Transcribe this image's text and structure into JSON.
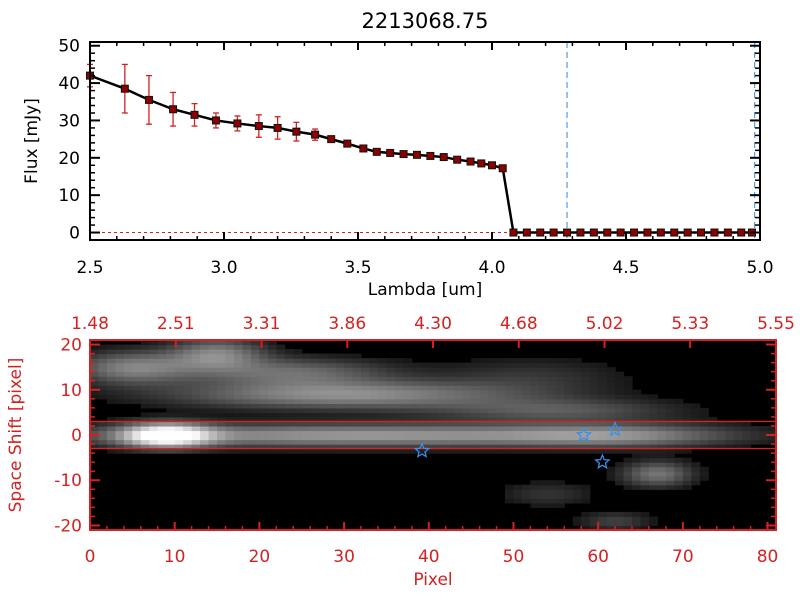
{
  "colors": {
    "axis_top": "#000000",
    "axis_bottom": "#d32222",
    "error_bar": "#d32222",
    "dashed_line": "#4f9fe0",
    "star": "#3d8ee8",
    "image_background": "#000000"
  },
  "chart_data": [
    {
      "type": "line",
      "title": "2213068.75",
      "xlabel": "Lambda [um]",
      "ylabel": "Flux [mJy]",
      "xlim": [
        2.5,
        5.0
      ],
      "ylim": [
        -2,
        51
      ],
      "x_ticks": [
        "2.5",
        "3.0",
        "3.5",
        "4.0",
        "4.5",
        "5.0"
      ],
      "y_ticks": [
        "0",
        "10",
        "20",
        "30",
        "40",
        "50"
      ],
      "series": [
        {
          "x": [
            2.5,
            2.63,
            2.72,
            2.81,
            2.89,
            2.97,
            3.05,
            3.13,
            3.2,
            3.27,
            3.34,
            3.4,
            3.46,
            3.52,
            3.57,
            3.62,
            3.67,
            3.72,
            3.77,
            3.82,
            3.87,
            3.92,
            3.96,
            4.0,
            4.04,
            4.08,
            4.13,
            4.18,
            4.23,
            4.28,
            4.33,
            4.38,
            4.43,
            4.48,
            4.53,
            4.58,
            4.63,
            4.68,
            4.73,
            4.78,
            4.83,
            4.88,
            4.93,
            4.97
          ],
          "y": [
            42,
            38.5,
            35.5,
            33,
            31.5,
            30,
            29.2,
            28.5,
            28,
            27,
            26.2,
            25,
            23.8,
            22.5,
            21.6,
            21.3,
            21,
            20.8,
            20.5,
            20.2,
            19.5,
            19,
            18.5,
            18,
            17.2,
            0,
            0,
            0,
            0,
            0,
            0,
            0,
            0,
            0,
            0,
            0,
            0,
            0,
            0,
            0,
            0,
            0,
            0,
            0
          ],
          "yerr": [
            3,
            6.5,
            6.5,
            4.5,
            3,
            2,
            2,
            3,
            3,
            2.5,
            1.5,
            0.8,
            0.5,
            0.3,
            0.3,
            0.3,
            0.3,
            0.3,
            0.3,
            0.3,
            0.3,
            0.3,
            0.3,
            0.3,
            0.3,
            0,
            0,
            0,
            0,
            0,
            0,
            0,
            0,
            0,
            0,
            0,
            0,
            0,
            0,
            0,
            0,
            0,
            0,
            0
          ]
        }
      ],
      "vertical_dashed_lines_x": [
        4.28,
        4.98
      ]
    },
    {
      "type": "heatmap",
      "xlabel": "Pixel",
      "ylabel": "Space Shift [pixel]",
      "xlim": [
        0,
        81
      ],
      "ylim": [
        -21,
        21
      ],
      "x_ticks": [
        "0",
        "10",
        "20",
        "30",
        "40",
        "50",
        "60",
        "70",
        "80"
      ],
      "y_ticks": [
        "-20",
        "-10",
        "0",
        "10",
        "20"
      ],
      "top_axis_ticks": [
        "1.48",
        "2.51",
        "3.31",
        "3.86",
        "4.30",
        "4.68",
        "5.02",
        "5.33",
        "5.55"
      ],
      "horizontal_lines_y": [
        3,
        -3
      ],
      "stars": [
        {
          "x": 39.2,
          "y": -3.5
        },
        {
          "x": 58.3,
          "y": 0
        },
        {
          "x": 62,
          "y": 1.2
        },
        {
          "x": 60.5,
          "y": -6
        }
      ],
      "emission_blobs": [
        {
          "x": 9,
          "y": 0,
          "sx": 3.5,
          "sy": 1.8,
          "amp": 1.0
        },
        {
          "x": 32,
          "y": 0,
          "sx": 24,
          "sy": 1.8,
          "amp": 0.55
        },
        {
          "x": 62,
          "y": 0,
          "sx": 9,
          "sy": 1.8,
          "amp": 0.32
        },
        {
          "x": 5,
          "y": 15,
          "sx": 5,
          "sy": 2.5,
          "amp": 0.45
        },
        {
          "x": 15,
          "y": 18,
          "sx": 4,
          "sy": 2.5,
          "amp": 0.45
        },
        {
          "x": 24,
          "y": 14,
          "sx": 8,
          "sy": 2.2,
          "amp": 0.35
        },
        {
          "x": 30,
          "y": 9,
          "sx": 14,
          "sy": 2.2,
          "amp": 0.5
        },
        {
          "x": 55,
          "y": 5.5,
          "sx": 10,
          "sy": 1.8,
          "amp": 0.28
        },
        {
          "x": 67,
          "y": -8.5,
          "sx": 3,
          "sy": 2,
          "amp": 0.4
        },
        {
          "x": 54,
          "y": -13,
          "sx": 4,
          "sy": 2,
          "amp": 0.15
        },
        {
          "x": 62,
          "y": -19,
          "sx": 3,
          "sy": 1.5,
          "amp": 0.2
        },
        {
          "x": 52,
          "y": 13,
          "sx": 8,
          "sy": 3,
          "amp": 0.15
        }
      ]
    }
  ]
}
